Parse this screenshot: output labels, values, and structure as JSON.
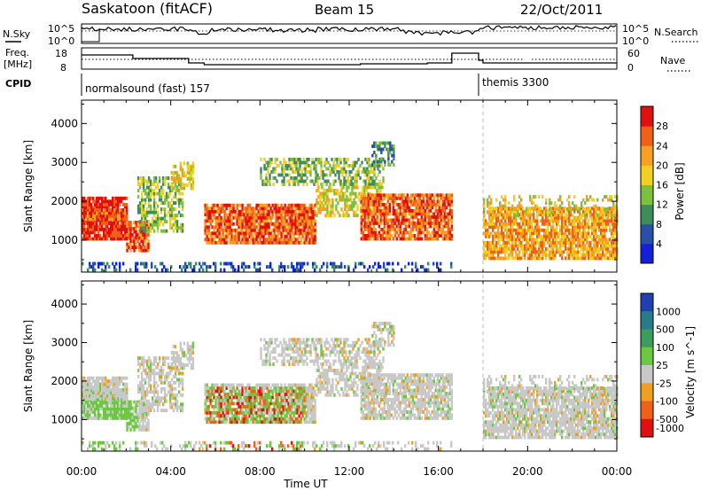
{
  "header": {
    "station": "Saskatoon (fitACF)",
    "beam": "Beam 15",
    "date": "22/Oct/2011"
  },
  "params": {
    "nsky_label": "N.Sky",
    "nsky_tick_top": "10^5",
    "nsky_tick_bottom": "10^0",
    "nsearch_label": "N.Search",
    "nsearch_tick_top": "10^5",
    "nsearch_tick_bottom": "10^0",
    "freq_label_1": "Freq.",
    "freq_label_2": "[MHz]",
    "freq_tick_top": "18",
    "freq_tick_bottom": "8",
    "nave_label": "Nave",
    "nave_tick_top": "60",
    "nave_tick_bottom": "0",
    "cpid_label": "CPID",
    "cpid_modes": [
      {
        "name": "normalsound (fast) 157",
        "start_hour": 0
      },
      {
        "name": "themis 3300",
        "start_hour": 18
      }
    ]
  },
  "chart_data": [
    {
      "type": "heatmap",
      "name": "power-panel",
      "ylabel": "Slant Range [km]",
      "xlabel": "",
      "x_range_hours": [
        0,
        24
      ],
      "ylim": [
        180,
        4600
      ],
      "y_ticks": [
        1000,
        2000,
        3000,
        4000
      ],
      "colorbar": {
        "label": "Power [dB]",
        "ticks": [
          "4",
          "8",
          "12",
          "16",
          "20",
          "24",
          "28"
        ],
        "colors": [
          "#1420d8",
          "#2850a8",
          "#3c8c5c",
          "#7cc03c",
          "#f0d020",
          "#f8a020",
          "#f06018",
          "#e01010"
        ]
      }
    },
    {
      "type": "heatmap",
      "name": "velocity-panel",
      "ylabel": "Slant Range [km]",
      "xlabel": "Time UT",
      "x_range_hours": [
        0,
        24
      ],
      "x_ticks": [
        "00:00",
        "04:00",
        "08:00",
        "12:00",
        "16:00",
        "20:00",
        "00:00"
      ],
      "ylim": [
        180,
        4600
      ],
      "y_ticks": [
        1000,
        2000,
        3000,
        4000
      ],
      "colorbar": {
        "label": "Velocity [m s^-1]",
        "ticks": [
          "1000",
          "500",
          "100",
          "25",
          "-25",
          "-100",
          "-500",
          "-1000"
        ],
        "colors": [
          "#2040b0",
          "#2a7a8a",
          "#3c9c5c",
          "#6cc840",
          "#c8c8c8",
          "#f0a020",
          "#f06018",
          "#e01010"
        ]
      }
    }
  ]
}
